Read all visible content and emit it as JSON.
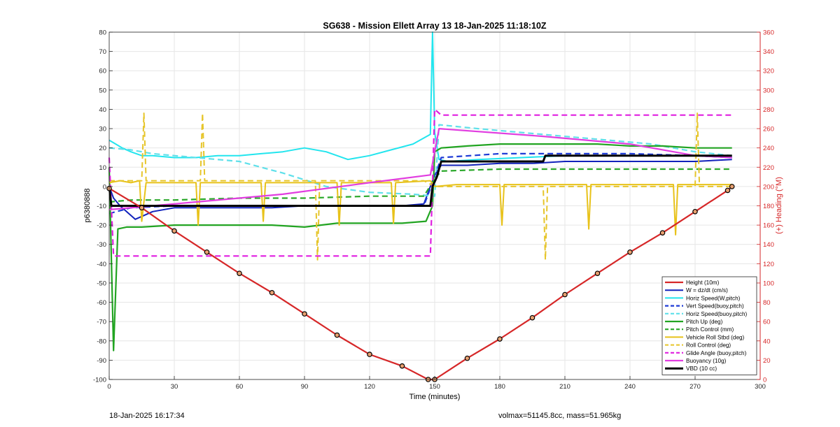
{
  "figure": {
    "title": "SG638 - Mission Ellett Array 13 18-Jan-2025 11:18:10Z",
    "footer_left": "18-Jan-2025 16:17:34",
    "footer_right": "volmax=51145.8cc, mass=51.965kg"
  },
  "chart_data": {
    "type": "line",
    "title": "SG638 - Mission Ellett Array 13 18-Jan-2025 11:18:10Z",
    "xlabel": "Time (minutes)",
    "ylabel": "p6380888",
    "y2label": "(+) Heading (°M)",
    "xlim": [
      0,
      300
    ],
    "ylim": [
      -100,
      80
    ],
    "y2lim": [
      0,
      360
    ],
    "xticks": [
      0,
      30,
      60,
      90,
      120,
      150,
      180,
      210,
      240,
      270,
      300
    ],
    "yticks": [
      -100,
      -90,
      -80,
      -70,
      -60,
      -50,
      -40,
      -30,
      -20,
      -10,
      0,
      10,
      20,
      30,
      40,
      50,
      60,
      70,
      80
    ],
    "y2ticks": [
      0,
      20,
      40,
      60,
      80,
      100,
      120,
      140,
      160,
      180,
      200,
      220,
      240,
      260,
      280,
      300,
      320,
      340,
      360
    ],
    "grid": true,
    "legend_position": "bottom-right",
    "right_axis_color": "#d62728",
    "series": [
      {
        "name": "Height (10m)",
        "color": "#d62728",
        "style": "solid",
        "width": 2.2,
        "x": [
          0,
          15,
          30,
          45,
          60,
          75,
          90,
          105,
          120,
          135,
          147,
          150,
          165,
          180,
          195,
          210,
          225,
          240,
          255,
          270,
          285,
          287
        ],
        "y": [
          -1,
          -11,
          -23,
          -34,
          -45,
          -55,
          -66,
          -77,
          -87,
          -93,
          -100,
          -100,
          -89,
          -79,
          -68,
          -56,
          -45,
          -34,
          -24,
          -13,
          -2,
          0
        ]
      },
      {
        "name": "W = dz/dt (cm/s)",
        "color": "#1122bb",
        "style": "solid",
        "width": 2,
        "x": [
          0,
          2,
          5,
          8,
          12,
          20,
          30,
          45,
          60,
          75,
          90,
          105,
          120,
          135,
          145,
          148,
          150,
          153,
          165,
          180,
          195,
          210,
          225,
          240,
          255,
          270,
          287
        ],
        "y": [
          0,
          -6,
          -10,
          -13,
          -17,
          -13,
          -11,
          -11,
          -11,
          -11,
          -10,
          -10,
          -10,
          -10,
          -9,
          0,
          6,
          11,
          11,
          12,
          12,
          13,
          13,
          13,
          13,
          13,
          14
        ]
      },
      {
        "name": "Horiz Speed(W,pitch)",
        "color": "#22e5ee",
        "style": "solid",
        "width": 2,
        "x": [
          0,
          3,
          6,
          10,
          15,
          20,
          30,
          40,
          50,
          60,
          70,
          80,
          90,
          100,
          110,
          120,
          130,
          140,
          148,
          149,
          150,
          152,
          156,
          170,
          190,
          210,
          230,
          250,
          270,
          287
        ],
        "y": [
          24,
          22,
          20,
          18,
          16,
          16,
          15,
          15,
          16,
          16,
          17,
          18,
          20,
          18,
          14,
          16,
          19,
          22,
          27,
          80,
          28,
          14,
          13,
          14,
          15,
          16,
          16,
          16,
          16,
          15
        ]
      },
      {
        "name": "Vert Speed(buoy,pitch)",
        "color": "#1f3cd6",
        "style": "dashed",
        "width": 2.2,
        "x": [
          0,
          10,
          30,
          60,
          90,
          120,
          145,
          150,
          153,
          180,
          210,
          240,
          270,
          287
        ],
        "y": [
          -14,
          -11,
          -10,
          -10,
          -10,
          -10,
          -10,
          5,
          15,
          17,
          17,
          17,
          16,
          15
        ]
      },
      {
        "name": "Horiz Speed(buoy,pitch)",
        "color": "#5fe0ea",
        "style": "dashed",
        "width": 2.2,
        "x": [
          0,
          10,
          20,
          40,
          60,
          80,
          100,
          120,
          140,
          150,
          152,
          170,
          190,
          210,
          230,
          250,
          270,
          287
        ],
        "y": [
          20,
          19,
          17,
          15,
          13,
          7,
          0,
          -3,
          -4,
          -5,
          32,
          30,
          28,
          26,
          24,
          22,
          18,
          16
        ]
      },
      {
        "name": "Pitch Up (deg)",
        "color": "#22a422",
        "style": "solid",
        "width": 2.2,
        "x": [
          0,
          2,
          4,
          8,
          15,
          30,
          45,
          60,
          75,
          90,
          105,
          120,
          135,
          146,
          149,
          150,
          153,
          165,
          180,
          195,
          210,
          225,
          240,
          255,
          270,
          287
        ],
        "y": [
          10,
          -85,
          -22,
          -21,
          -21,
          -20,
          -20,
          -20,
          -20,
          -21,
          -19,
          -19,
          -19,
          -18,
          -10,
          18,
          20,
          21,
          22,
          22,
          22,
          22,
          21,
          21,
          20,
          20
        ]
      },
      {
        "name": "Pitch Control (mm)",
        "color": "#2aa82a",
        "style": "dashed",
        "width": 2.2,
        "x": [
          0,
          10,
          30,
          60,
          90,
          120,
          145,
          150,
          153,
          180,
          210,
          240,
          270,
          287
        ],
        "y": [
          -8,
          -7,
          -7,
          -6,
          -6,
          -5,
          -5,
          4,
          8,
          9,
          9,
          9,
          9,
          9
        ]
      },
      {
        "name": "Vehicle Roll Stbd (deg)",
        "color": "#e8c21a",
        "style": "solid",
        "width": 2,
        "x": [
          0,
          5,
          10,
          14,
          15,
          17,
          30,
          40,
          41,
          42,
          60,
          70,
          71,
          72,
          90,
          105,
          106,
          107,
          120,
          130,
          131,
          132,
          148,
          150,
          160,
          180,
          181,
          182,
          200,
          220,
          221,
          222,
          240,
          260,
          261,
          262,
          280,
          287
        ],
        "y": [
          2,
          3,
          2,
          3,
          -18,
          2,
          2,
          2,
          -20,
          2,
          2,
          2,
          -18,
          2,
          2,
          2,
          -20,
          2,
          2,
          2,
          -19,
          2,
          3,
          0,
          1,
          1,
          -20,
          1,
          1,
          1,
          -22,
          1,
          1,
          1,
          -25,
          1,
          1,
          1
        ]
      },
      {
        "name": "Roll Control (deg)",
        "color": "#e6c52a",
        "style": "dashed",
        "width": 2,
        "x": [
          0,
          5,
          15,
          16,
          17,
          30,
          42,
          43,
          44,
          60,
          75,
          90,
          95,
          96,
          97,
          110,
          130,
          145,
          150,
          152,
          180,
          200,
          201,
          202,
          220,
          240,
          260,
          270,
          271,
          272,
          287
        ],
        "y": [
          3,
          3,
          3,
          38,
          3,
          3,
          3,
          38,
          3,
          3,
          3,
          3,
          3,
          -38,
          3,
          3,
          3,
          3,
          0,
          0,
          0,
          0,
          -38,
          0,
          0,
          0,
          0,
          0,
          38,
          0,
          0
        ]
      },
      {
        "name": "Glide Angle (buoy,pitch)",
        "color": "#e01fe0",
        "style": "dashed",
        "width": 2.2,
        "x": [
          0,
          2,
          5,
          10,
          20,
          30,
          60,
          90,
          120,
          140,
          148,
          150,
          153,
          170,
          200,
          230,
          260,
          287
        ],
        "y": [
          15,
          -36,
          -36,
          -36,
          -36,
          -36,
          -36,
          -36,
          -36,
          -36,
          -36,
          40,
          37,
          37,
          37,
          37,
          37,
          37
        ]
      },
      {
        "name": "Buoyancy (10g)",
        "color": "#e13de0",
        "style": "solid",
        "width": 2.2,
        "x": [
          0,
          40,
          80,
          120,
          148,
          152,
          200,
          240,
          270,
          287
        ],
        "y": [
          -12,
          -8,
          -4,
          2,
          6,
          30,
          26,
          22,
          16,
          15
        ]
      },
      {
        "name": "VBD (10 cc)",
        "color": "#000000",
        "style": "solid",
        "width": 3,
        "x": [
          0,
          1,
          2,
          40,
          80,
          120,
          148,
          149,
          151,
          153,
          180,
          200,
          201,
          230,
          260,
          287
        ],
        "y": [
          0,
          -10,
          -10,
          -10,
          -10,
          -10,
          -10,
          0,
          5,
          13,
          13,
          13,
          16,
          16,
          16,
          16
        ]
      }
    ]
  }
}
